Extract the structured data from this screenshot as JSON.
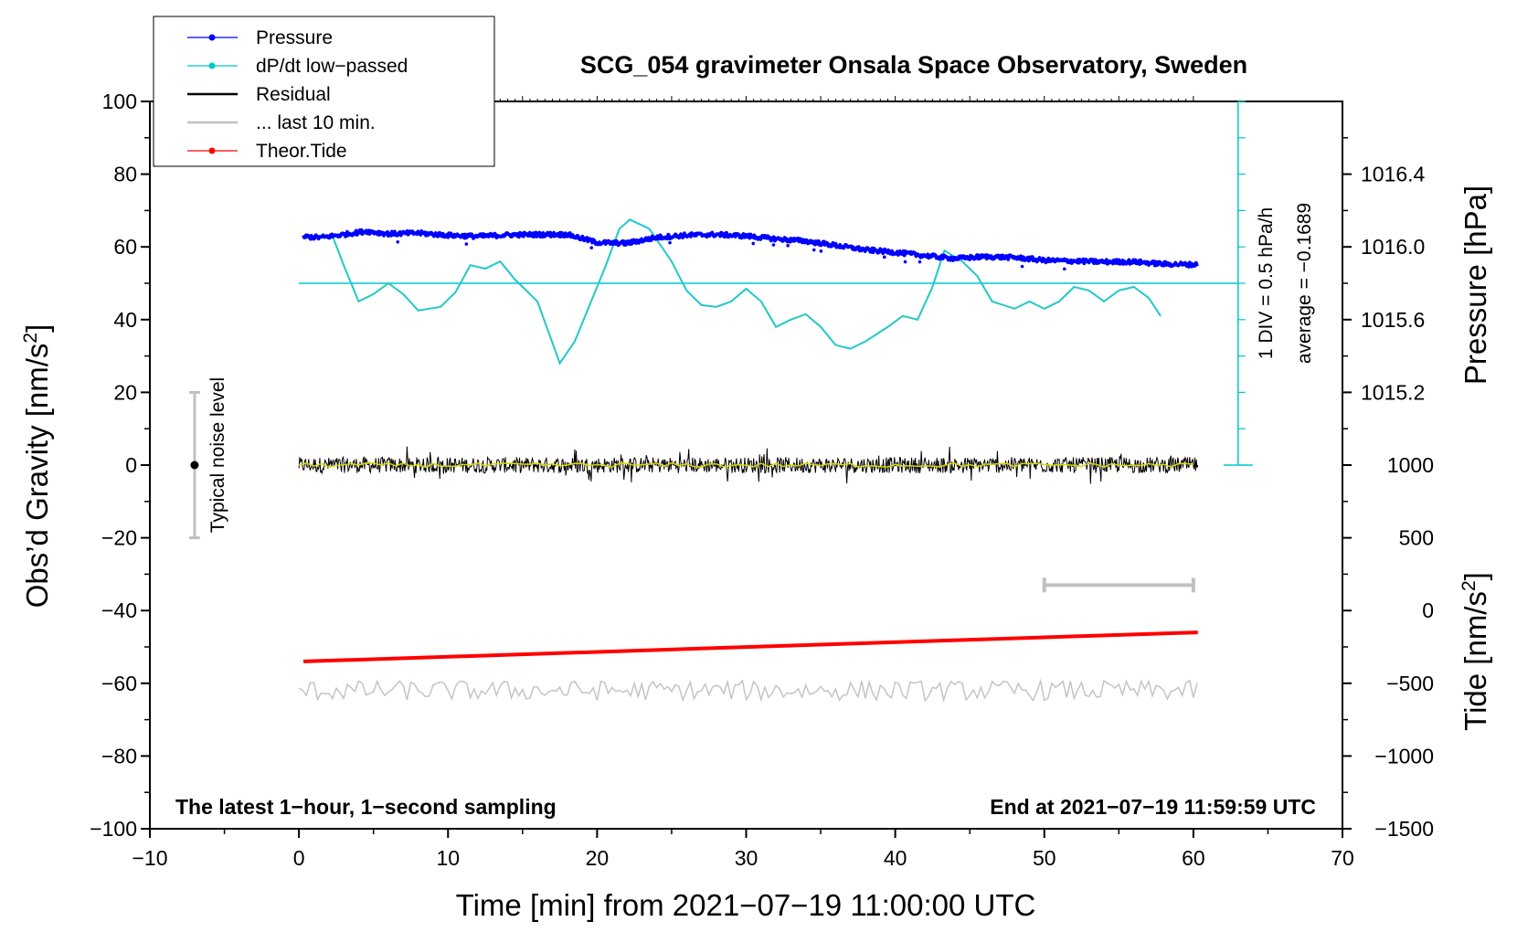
{
  "chart_data": {
    "type": "line",
    "title": "SCG_054 gravimeter Onsala Space Observatory, Sweden",
    "xlabel": "Time [min] from 2021−07−19 11:00:00 UTC",
    "ylabel": "Obs’d Gravity [nm/s",
    "ylabel_sup": "2",
    "ylabel_end": "]",
    "y2label": "Pressure [hPa]",
    "y3label": "Tide [nm/s",
    "y3label_sup": "2",
    "y3label_end": "]",
    "xlim": [
      -10,
      70
    ],
    "ylim": [
      -100,
      100
    ],
    "xticks": [
      -10,
      0,
      10,
      20,
      30,
      40,
      50,
      60,
      70
    ],
    "xtick_labels": [
      "−10",
      "0",
      "10",
      "20",
      "30",
      "40",
      "50",
      "60",
      "70"
    ],
    "yticks": [
      -100,
      -80,
      -60,
      -40,
      -20,
      0,
      20,
      40,
      60,
      80,
      100
    ],
    "ytick_labels": [
      "−100",
      "−80",
      "−60",
      "−40",
      "−20",
      "0",
      "20",
      "40",
      "60",
      "80",
      "100"
    ],
    "pressure_axis": {
      "ticks": [
        1015.2,
        1015.6,
        1016.0,
        1016.4
      ],
      "tick_labels": [
        "1015.2",
        "1015.6",
        "1016.0",
        "1016.4"
      ],
      "ref_value": 1016.0,
      "ref_gravity": 60,
      "hpa_per_gravity": 0.02
    },
    "tide_axis": {
      "ticks": [
        -1500,
        -1000,
        -500,
        0,
        500,
        1000
      ],
      "tick_labels": [
        "−1500",
        "−1000",
        "−500",
        "0",
        "500",
        "1000"
      ],
      "ref_value": -1500,
      "ref_gravity": -100,
      "units_per_gravity": 25
    },
    "legend": {
      "position": "top-left",
      "entries": [
        {
          "label": "Pressure",
          "color": "#0000ff",
          "style": "line-dot"
        },
        {
          "label": "dP/dt low−passed",
          "color": "#00c8c8",
          "style": "line-dot"
        },
        {
          "label": "Residual",
          "color": "#000000",
          "style": "line"
        },
        {
          "label": "... last 10 min.",
          "color": "#c0c0c0",
          "style": "line"
        },
        {
          "label": "Theor.Tide",
          "color": "#ff0000",
          "style": "line-dot"
        }
      ]
    },
    "series": [
      {
        "name": "Pressure",
        "color": "#0000ff",
        "x": [
          0.3,
          1.5,
          3,
          4.5,
          6,
          8,
          10,
          12,
          14,
          16,
          18,
          20,
          22,
          24,
          26,
          28,
          30,
          32,
          34,
          36,
          38,
          40,
          42,
          44,
          46,
          48,
          50,
          52,
          54,
          56,
          58,
          60.3
        ],
        "y": [
          62.8,
          62.6,
          63.4,
          64.3,
          63.6,
          63.8,
          63.2,
          62.9,
          63.3,
          63.4,
          63.4,
          61.2,
          61.0,
          62.6,
          63.2,
          63.4,
          63.0,
          62.2,
          61.6,
          60.4,
          59.2,
          58.5,
          57.6,
          56.8,
          57.3,
          57.1,
          56.3,
          56.1,
          55.9,
          55.9,
          55.3,
          55.1
        ]
      },
      {
        "name": "dP/dt low-passed",
        "color": "#00c8c8",
        "x": [
          0.3,
          2.3,
          3,
          4,
          5,
          6,
          7,
          8,
          9.5,
          10.5,
          11.5,
          12.5,
          13.5,
          14.5,
          16,
          17.5,
          18.5,
          19.5,
          20.5,
          21.5,
          22.2,
          23.5,
          25,
          26,
          27,
          28,
          29,
          30,
          31,
          32,
          33,
          34,
          35,
          36,
          37,
          38,
          39.5,
          40.5,
          41.5,
          42.5,
          43.3,
          44.5,
          45.5,
          46.5,
          48,
          49,
          50,
          51,
          52,
          53,
          54,
          55,
          56,
          57,
          57.8
        ],
        "y": [
          62.5,
          62.5,
          55,
          45,
          47,
          50,
          47,
          42.5,
          43.5,
          47.5,
          55,
          54,
          56,
          51,
          45,
          28,
          34,
          44,
          54,
          65,
          67.5,
          65,
          56,
          48,
          44,
          43.5,
          45,
          48.5,
          45,
          38,
          40,
          41.5,
          38,
          33,
          32,
          34,
          38,
          41,
          40,
          49,
          59,
          56,
          52,
          45,
          43,
          45,
          43,
          45,
          49,
          48,
          45,
          48,
          49,
          46,
          41
        ]
      },
      {
        "name": "Theor.Tide",
        "color": "#ff0000",
        "x": [
          0.3,
          60.3
        ],
        "y": [
          -54,
          -46
        ]
      }
    ],
    "dpdt_zero_level": 50,
    "dpdt_scale_label": "1 DIV = 0.5 hPa/h",
    "average_label": "average = −0.1689",
    "noise_label": "Typical noise level",
    "annotation_left": "The latest 1−hour, 1−second sampling",
    "annotation_right": "End at 2021−07−19 11:59:59 UTC",
    "last10_bar_range": [
      50,
      60
    ]
  }
}
